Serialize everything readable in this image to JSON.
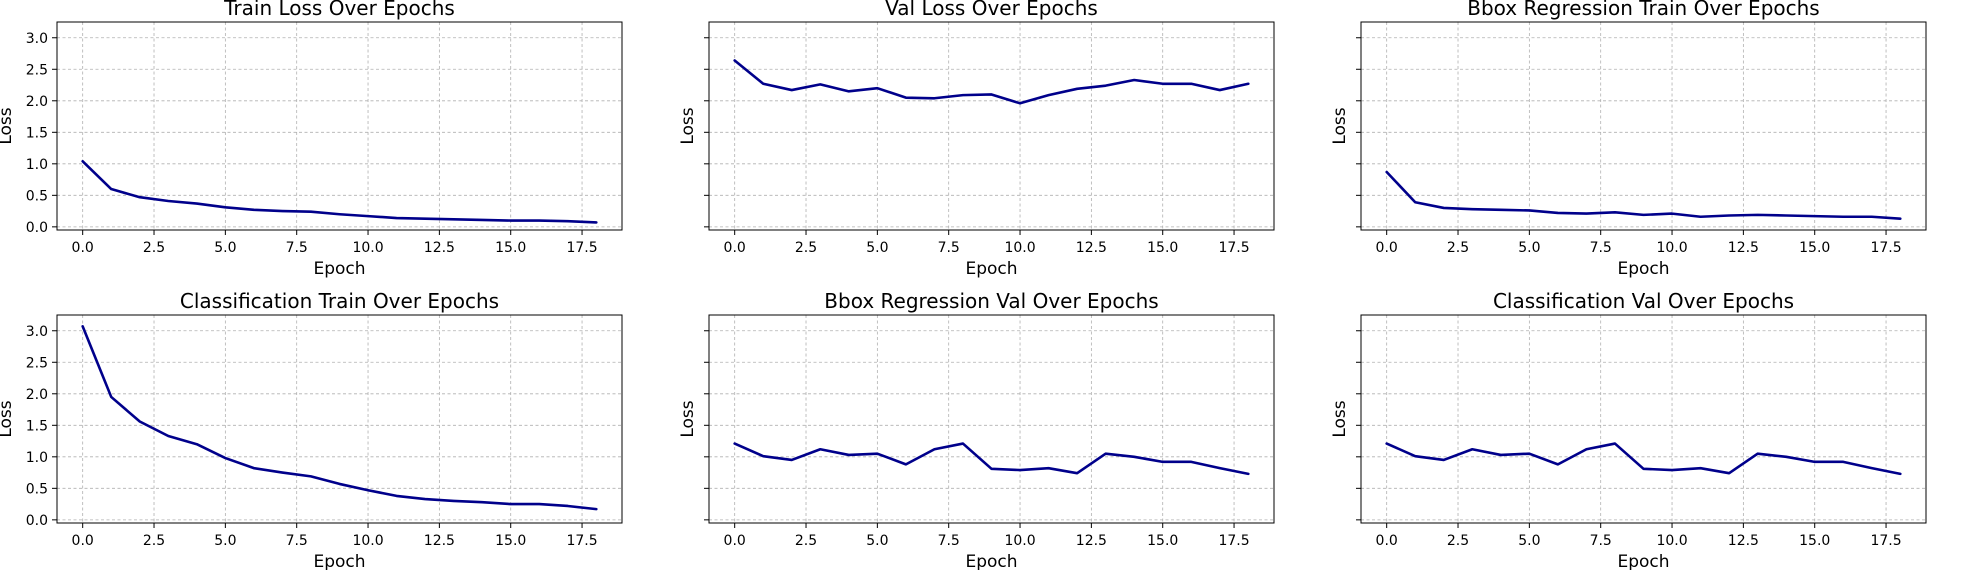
{
  "chart_data": [
    {
      "type": "line",
      "title": "Train Loss Over Epochs",
      "xlabel": "Epoch",
      "ylabel": "Loss",
      "xlim": [
        -0.9,
        18.9
      ],
      "ylim": [
        -0.05,
        3.25
      ],
      "xticks": [
        "0.0",
        "2.5",
        "5.0",
        "7.5",
        "10.0",
        "12.5",
        "15.0",
        "17.5"
      ],
      "yticks": [
        "0.0",
        "0.5",
        "1.0",
        "1.5",
        "2.0",
        "2.5",
        "3.0"
      ],
      "show_ytick_labels": true,
      "grid": true,
      "series": [
        {
          "color": "#00008b",
          "x": [
            0,
            1,
            2,
            3,
            4,
            5,
            6,
            7,
            8,
            9,
            10,
            11,
            12,
            13,
            14,
            15,
            16,
            17,
            18
          ],
          "y": [
            1.04,
            0.6,
            0.47,
            0.41,
            0.37,
            0.31,
            0.27,
            0.25,
            0.24,
            0.2,
            0.17,
            0.14,
            0.13,
            0.12,
            0.11,
            0.1,
            0.1,
            0.09,
            0.07
          ]
        }
      ]
    },
    {
      "type": "line",
      "title": "Val Loss Over Epochs",
      "xlabel": "Epoch",
      "ylabel": "Loss",
      "xlim": [
        -0.9,
        18.9
      ],
      "ylim": [
        -0.05,
        3.25
      ],
      "xticks": [
        "0.0",
        "2.5",
        "5.0",
        "7.5",
        "10.0",
        "12.5",
        "15.0",
        "17.5"
      ],
      "yticks": [
        "0.0",
        "0.5",
        "1.0",
        "1.5",
        "2.0",
        "2.5",
        "3.0"
      ],
      "show_ytick_labels": false,
      "grid": true,
      "series": [
        {
          "color": "#00008b",
          "x": [
            0,
            1,
            2,
            3,
            4,
            5,
            6,
            7,
            8,
            9,
            10,
            11,
            12,
            13,
            14,
            15,
            16,
            17,
            18
          ],
          "y": [
            2.64,
            2.27,
            2.17,
            2.26,
            2.15,
            2.2,
            2.05,
            2.04,
            2.09,
            2.1,
            1.96,
            2.09,
            2.19,
            2.24,
            2.33,
            2.27,
            2.27,
            2.17,
            2.27
          ]
        }
      ]
    },
    {
      "type": "line",
      "title": "Bbox Regression Train Over Epochs",
      "xlabel": "Epoch",
      "ylabel": "Loss",
      "xlim": [
        -0.9,
        18.9
      ],
      "ylim": [
        -0.05,
        3.25
      ],
      "xticks": [
        "0.0",
        "2.5",
        "5.0",
        "7.5",
        "10.0",
        "12.5",
        "15.0",
        "17.5"
      ],
      "yticks": [
        "0.0",
        "0.5",
        "1.0",
        "1.5",
        "2.0",
        "2.5",
        "3.0"
      ],
      "show_ytick_labels": false,
      "grid": true,
      "series": [
        {
          "color": "#00008b",
          "x": [
            0,
            1,
            2,
            3,
            4,
            5,
            6,
            7,
            8,
            9,
            10,
            11,
            12,
            13,
            14,
            15,
            16,
            17,
            18
          ],
          "y": [
            0.87,
            0.39,
            0.3,
            0.28,
            0.27,
            0.26,
            0.22,
            0.21,
            0.23,
            0.19,
            0.21,
            0.16,
            0.18,
            0.19,
            0.18,
            0.17,
            0.16,
            0.16,
            0.13
          ]
        }
      ]
    },
    {
      "type": "line",
      "title": "Classification Train Over Epochs",
      "xlabel": "Epoch",
      "ylabel": "Loss",
      "xlim": [
        -0.9,
        18.9
      ],
      "ylim": [
        -0.05,
        3.25
      ],
      "xticks": [
        "0.0",
        "2.5",
        "5.0",
        "7.5",
        "10.0",
        "12.5",
        "15.0",
        "17.5"
      ],
      "yticks": [
        "0.0",
        "0.5",
        "1.0",
        "1.5",
        "2.0",
        "2.5",
        "3.0"
      ],
      "show_ytick_labels": true,
      "grid": true,
      "series": [
        {
          "color": "#00008b",
          "x": [
            0,
            1,
            2,
            3,
            4,
            5,
            6,
            7,
            8,
            9,
            10,
            11,
            12,
            13,
            14,
            15,
            16,
            17,
            18
          ],
          "y": [
            3.07,
            1.95,
            1.56,
            1.33,
            1.2,
            0.98,
            0.82,
            0.75,
            0.69,
            0.57,
            0.47,
            0.38,
            0.33,
            0.3,
            0.28,
            0.25,
            0.25,
            0.22,
            0.17
          ]
        }
      ]
    },
    {
      "type": "line",
      "title": "Bbox Regression Val Over Epochs",
      "xlabel": "Epoch",
      "ylabel": "Loss",
      "xlim": [
        -0.9,
        18.9
      ],
      "ylim": [
        -0.05,
        3.25
      ],
      "xticks": [
        "0.0",
        "2.5",
        "5.0",
        "7.5",
        "10.0",
        "12.5",
        "15.0",
        "17.5"
      ],
      "yticks": [
        "0.0",
        "0.5",
        "1.0",
        "1.5",
        "2.0",
        "2.5",
        "3.0"
      ],
      "show_ytick_labels": false,
      "grid": true,
      "series": [
        {
          "color": "#00008b",
          "x": [
            0,
            1,
            2,
            3,
            4,
            5,
            6,
            7,
            8,
            9,
            10,
            11,
            12,
            13,
            14,
            15,
            16,
            17,
            18
          ],
          "y": [
            1.21,
            1.01,
            0.95,
            1.12,
            1.03,
            1.05,
            0.88,
            1.12,
            1.21,
            0.81,
            0.79,
            0.82,
            0.74,
            1.05,
            1.0,
            0.92,
            0.92,
            0.82,
            0.73
          ]
        }
      ]
    },
    {
      "type": "line",
      "title": "Classification Val Over Epochs",
      "xlabel": "Epoch",
      "ylabel": "Loss",
      "xlim": [
        -0.9,
        18.9
      ],
      "ylim": [
        -0.05,
        3.25
      ],
      "xticks": [
        "0.0",
        "2.5",
        "5.0",
        "7.5",
        "10.0",
        "12.5",
        "15.0",
        "17.5"
      ],
      "yticks": [
        "0.0",
        "0.5",
        "1.0",
        "1.5",
        "2.0",
        "2.5",
        "3.0"
      ],
      "show_ytick_labels": false,
      "grid": true,
      "series": [
        {
          "color": "#00008b",
          "x": [
            0,
            1,
            2,
            3,
            4,
            5,
            6,
            7,
            8,
            9,
            10,
            11,
            12,
            13,
            14,
            15,
            16,
            17,
            18
          ],
          "y": [
            1.21,
            1.01,
            0.95,
            1.12,
            1.03,
            1.05,
            0.88,
            1.12,
            1.21,
            0.81,
            0.79,
            0.82,
            0.74,
            1.05,
            1.0,
            0.92,
            0.92,
            0.82,
            0.73
          ]
        }
      ]
    }
  ]
}
